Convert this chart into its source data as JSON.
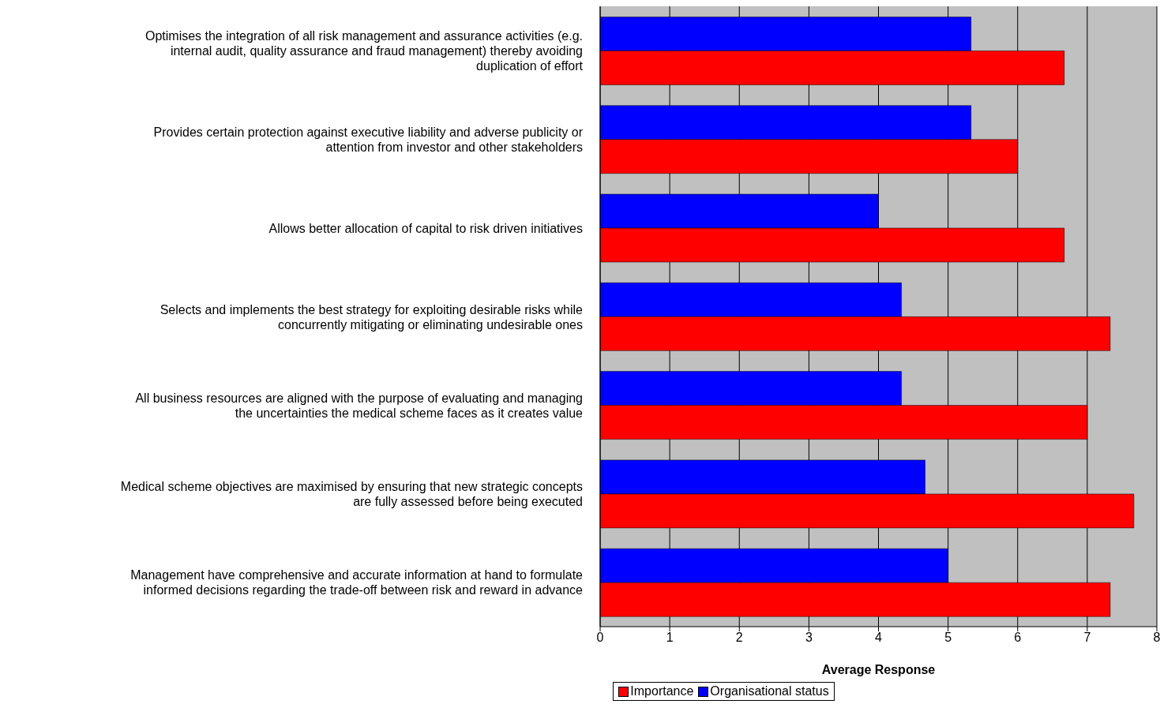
{
  "chart_data": {
    "type": "bar",
    "orientation": "horizontal",
    "xlabel": "Average Response",
    "categories": [
      "Optimises the integration of all risk management and assurance activities (e.g. internal audit, quality assurance and fraud management) thereby avoiding duplication of effort",
      "Provides certain protection against executive liability and adverse publicity or attention from investor and other stakeholders",
      "Allows better allocation of capital to risk driven initiatives",
      "Selects and implements the best strategy for exploiting desirable risks while concurrently mitigating or eliminating undesirable ones",
      "All business resources are aligned with the purpose of evaluating and managing the uncertainties the medical scheme faces as it creates value",
      "Medical scheme objectives are maximised by ensuring that new strategic concepts are fully assessed before being executed",
      "Management have comprehensive and accurate information at hand to formulate informed decisions regarding the trade-off between risk and reward in advance"
    ],
    "series": [
      {
        "name": "Importance",
        "color": "#ff0000",
        "values": [
          6.67,
          6.0,
          6.67,
          7.33,
          7.0,
          7.67,
          7.33
        ]
      },
      {
        "name": "Organisational status",
        "color": "#0000ff",
        "values": [
          5.33,
          5.33,
          4.0,
          4.33,
          4.33,
          4.67,
          5.0
        ]
      }
    ],
    "xlim": [
      0,
      8
    ],
    "xticks": [
      0,
      1,
      2,
      3,
      4,
      5,
      6,
      7,
      8
    ],
    "grid": "x",
    "legend": "bottom"
  }
}
